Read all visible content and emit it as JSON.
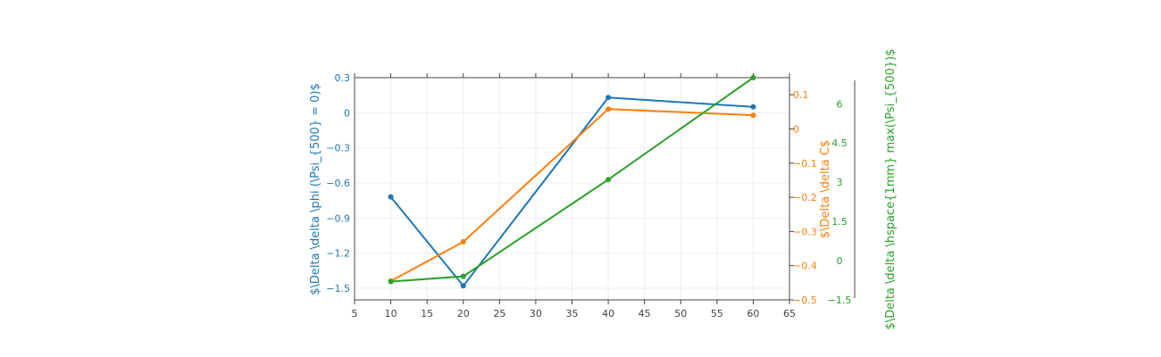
{
  "chart_data": {
    "type": "line",
    "x": [
      10,
      20,
      40,
      60
    ],
    "xlim": [
      5,
      65
    ],
    "x_ticks": [
      "5",
      "10",
      "15",
      "20",
      "25",
      "30",
      "35",
      "40",
      "45",
      "50",
      "55",
      "60",
      "65"
    ],
    "grid": true,
    "legend": "none",
    "series": [
      {
        "name": "",
        "axis": "y1",
        "color": "#1f77b4",
        "values": [
          -0.72,
          -1.48,
          0.13,
          0.05
        ]
      },
      {
        "name": "",
        "axis": "y2",
        "color": "#ff7f0e",
        "values": [
          -0.445,
          -0.33,
          0.058,
          0.04
        ]
      },
      {
        "name": "",
        "axis": "y3",
        "color": "#2ca02c",
        "values": [
          -0.8,
          -0.6,
          3.1,
          7.0
        ]
      }
    ],
    "axes": {
      "y1": {
        "label": "$\\Delta \\delta \\phi (\\Psi_{500} = 0)$",
        "ylim": [
          -1.6,
          0.3
        ],
        "ticks": [
          "0.3",
          "0",
          "−0.3",
          "−0.6",
          "−0.9",
          "−1.2",
          "−1.5"
        ],
        "tick_values": [
          0.3,
          0,
          -0.3,
          -0.6,
          -0.9,
          -1.2,
          -1.5
        ],
        "color": "#1f77b4"
      },
      "y2": {
        "label": "$\\Delta \\delta C$",
        "ylim": [
          -0.5,
          0.15
        ],
        "ticks": [
          "0.1",
          "0",
          "−0.1",
          "−0.2",
          "−0.3",
          "−0.4",
          "−0.5"
        ],
        "tick_values": [
          0.1,
          0,
          -0.1,
          -0.2,
          -0.3,
          -0.4,
          -0.5
        ],
        "color": "#ff7f0e"
      },
      "y3": {
        "label": "$\\Delta \\delta \\hspace{1mm} max(\\Psi_{500})$",
        "ylim": [
          -1.5,
          7.0
        ],
        "ticks": [
          "6",
          "4.5",
          "3",
          "1.5",
          "0",
          "−1.5"
        ],
        "tick_values": [
          6,
          4.5,
          3,
          1.5,
          0,
          -1.5
        ],
        "color": "#2ca02c"
      }
    }
  }
}
